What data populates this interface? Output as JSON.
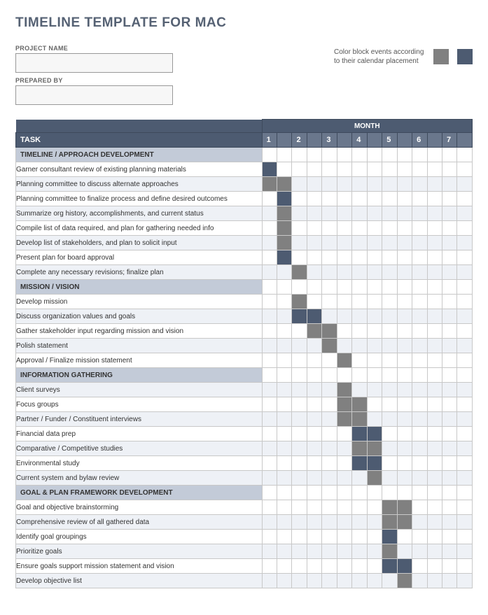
{
  "title": "TIMELINE TEMPLATE FOR MAC",
  "fields": {
    "project_name_label": "PROJECT NAME",
    "project_name_value": "",
    "prepared_by_label": "PREPARED BY",
    "prepared_by_value": ""
  },
  "legend": {
    "text": "Color block events according to their calendar placement",
    "color_a": "#808080",
    "color_b": "#4d5b71"
  },
  "headers": {
    "month": "MONTH",
    "task": "TASK",
    "numbers": [
      "1",
      "",
      "2",
      "",
      "3",
      "",
      "4",
      "",
      "5",
      "",
      "6",
      "",
      "7",
      ""
    ]
  },
  "colors": {
    "header_bg": "#4d5b71",
    "subheader_bg": "#6a778c",
    "section_bg": "#c3cbd8",
    "alt_row_bg": "#eef1f6",
    "grid_border": "#c8c8c8",
    "fill_grey": "#808080",
    "fill_dark": "#4d5b71"
  },
  "num_cols": 14,
  "sections": [
    {
      "title": "TIMELINE / APPROACH DEVELOPMENT",
      "rows": [
        {
          "label": "Garner consultant review of existing planning materials",
          "cells": {
            "0": "d"
          }
        },
        {
          "label": "Planning committee to discuss alternate approaches",
          "cells": {
            "0": "g",
            "1": "g"
          }
        },
        {
          "label": "Planning committee to finalize process and define desired outcomes",
          "cells": {
            "1": "d"
          }
        },
        {
          "label": "Summarize org history, accomplishments, and current status",
          "cells": {
            "1": "g"
          }
        },
        {
          "label": "Compile list of data required, and plan for gathering needed info",
          "cells": {
            "1": "g"
          }
        },
        {
          "label": "Develop list of stakeholders, and plan to solicit input",
          "cells": {
            "1": "g"
          }
        },
        {
          "label": "Present plan for board approval",
          "cells": {
            "1": "d"
          }
        },
        {
          "label": "Complete any necessary revisions; finalize plan",
          "cells": {
            "2": "g"
          }
        }
      ]
    },
    {
      "title": "MISSION / VISION",
      "rows": [
        {
          "label": "Develop mission",
          "cells": {
            "2": "g"
          }
        },
        {
          "label": "Discuss organization values and goals",
          "cells": {
            "2": "d",
            "3": "d"
          }
        },
        {
          "label": "Gather stakeholder input regarding mission and vision",
          "cells": {
            "3": "g",
            "4": "g"
          }
        },
        {
          "label": "Polish statement",
          "cells": {
            "4": "g"
          }
        },
        {
          "label": "Approval / Finalize mission statement",
          "cells": {
            "5": "g"
          }
        }
      ]
    },
    {
      "title": "INFORMATION GATHERING",
      "rows": [
        {
          "label": "Client surveys",
          "cells": {
            "5": "g"
          }
        },
        {
          "label": "Focus groups",
          "cells": {
            "5": "g",
            "6": "g"
          }
        },
        {
          "label": "Partner / Funder / Constituent interviews",
          "cells": {
            "5": "g",
            "6": "g"
          }
        },
        {
          "label": "Financial data prep",
          "cells": {
            "6": "d",
            "7": "d"
          }
        },
        {
          "label": "Comparative / Competitive studies",
          "cells": {
            "6": "g",
            "7": "g"
          }
        },
        {
          "label": "Environmental study",
          "cells": {
            "6": "d",
            "7": "d"
          }
        },
        {
          "label": "Current system and bylaw review",
          "cells": {
            "7": "g"
          }
        }
      ]
    },
    {
      "title": "GOAL & PLAN FRAMEWORK DEVELOPMENT",
      "rows": [
        {
          "label": "Goal and objective brainstorming",
          "cells": {
            "8": "g",
            "9": "g"
          }
        },
        {
          "label": "Comprehensive review of all gathered data",
          "cells": {
            "8": "g",
            "9": "g"
          }
        },
        {
          "label": "Identify goal groupings",
          "cells": {
            "8": "d"
          }
        },
        {
          "label": "Prioritize goals",
          "cells": {
            "8": "g"
          }
        },
        {
          "label": "Ensure goals support mission statement and vision",
          "cells": {
            "8": "d",
            "9": "d"
          }
        },
        {
          "label": "Develop objective list",
          "cells": {
            "9": "g"
          }
        }
      ]
    }
  ]
}
